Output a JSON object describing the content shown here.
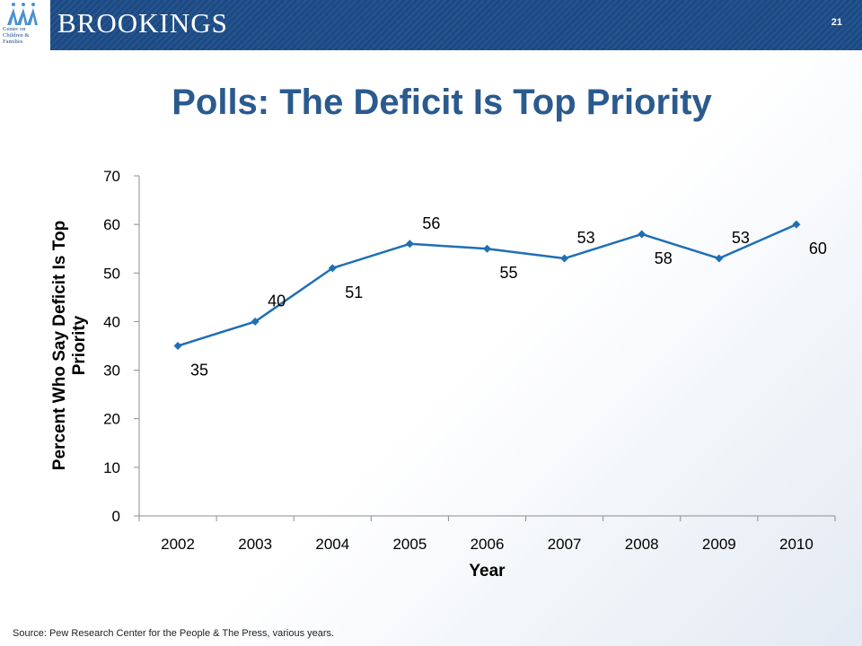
{
  "header": {
    "logo_lines": [
      "Center on",
      "Children &",
      "Families"
    ],
    "brand": "BROOKINGS",
    "slide_number": "21"
  },
  "title": "Polls: The Deficit Is Top Priority",
  "source": "Source: Pew Research Center for the People & The Press, various years.",
  "colors": {
    "header": "#1b4a85",
    "title": "#2a5a8e",
    "series": "#1f6fb4"
  },
  "chart_data": {
    "type": "line",
    "categories": [
      "2002",
      "2003",
      "2004",
      "2005",
      "2006",
      "2007",
      "2008",
      "2009",
      "2010"
    ],
    "series": [
      {
        "values": [
          35,
          40,
          51,
          56,
          55,
          53,
          58,
          53,
          60
        ]
      }
    ],
    "data_labels": [
      "35",
      "40",
      "51",
      "56",
      "55",
      "53",
      "58",
      "53",
      "60"
    ],
    "data_label_positions": [
      "below",
      "above",
      "below",
      "above",
      "below",
      "above",
      "below",
      "above",
      "below"
    ],
    "xlabel": "Year",
    "ylabel": "Percent Who Say Deficit Is Top Priority",
    "ylabel_lines": [
      "Percent Who Say Deficit Is Top",
      "Priority"
    ],
    "ylim": [
      0,
      70
    ],
    "yticks": [
      0,
      10,
      20,
      30,
      40,
      50,
      60,
      70
    ],
    "grid": false,
    "legend": "none",
    "marker": "diamond"
  }
}
